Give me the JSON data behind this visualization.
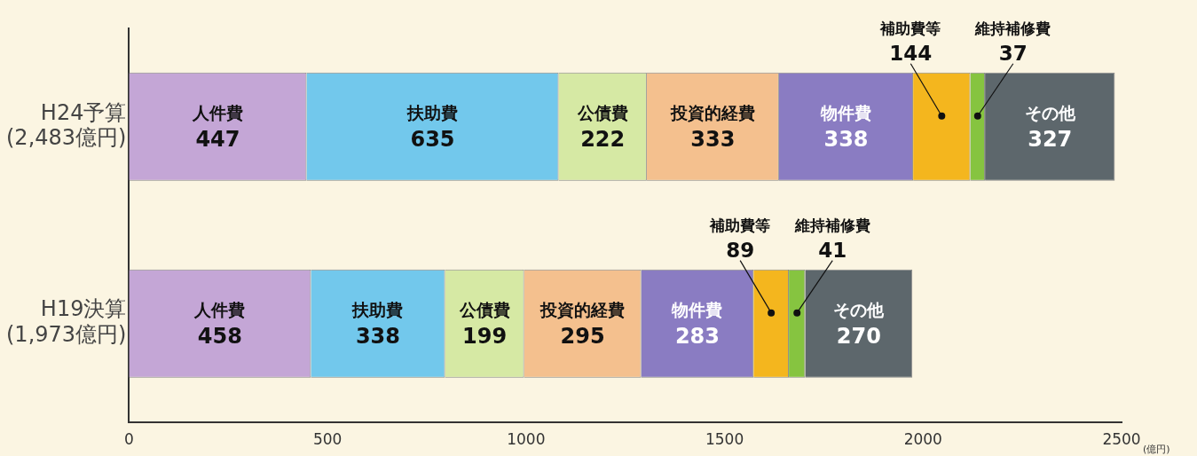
{
  "chart_data": {
    "type": "bar",
    "orientation": "horizontal",
    "stacked": true,
    "categories": [
      "H24予算\n(2,483億円)",
      "H19決算\n(1,973億円)"
    ],
    "series": [
      {
        "name": "人件費",
        "color": "#c4a6d6",
        "values": [
          447,
          458
        ]
      },
      {
        "name": "扶助費",
        "color": "#72c8ec",
        "values": [
          635,
          338
        ]
      },
      {
        "name": "公債費",
        "color": "#d6e9a4",
        "values": [
          222,
          199
        ]
      },
      {
        "name": "投資的経費",
        "color": "#f4c08e",
        "values": [
          333,
          295
        ]
      },
      {
        "name": "物件費",
        "color": "#8a7cc2",
        "values": [
          338,
          283
        ]
      },
      {
        "name": "補助費等",
        "color": "#f4b61e",
        "values": [
          144,
          89
        ]
      },
      {
        "name": "維持補修費",
        "color": "#86c440",
        "values": [
          37,
          41
        ]
      },
      {
        "name": "その他",
        "color": "#5d676c",
        "values": [
          327,
          270
        ]
      }
    ],
    "xlim": [
      0,
      2500
    ],
    "xticks": [
      0,
      500,
      1000,
      1500,
      2000,
      2500
    ],
    "xlabel": "(億円)",
    "grid": false,
    "legend": false,
    "data_labels": true
  }
}
